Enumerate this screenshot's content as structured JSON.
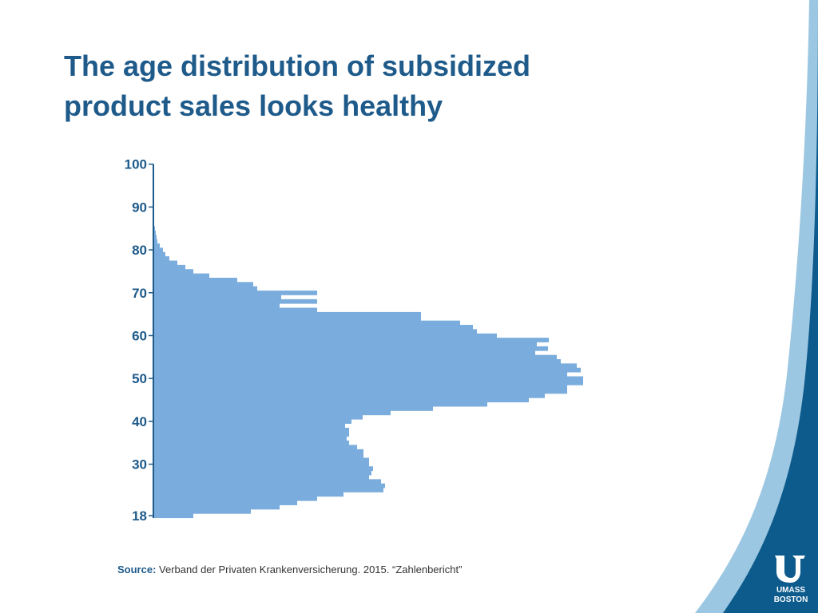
{
  "slide": {
    "title_line1": "The age distribution of subsidized",
    "title_line2": "product sales looks healthy",
    "source_label": "Source:",
    "source_text": "Verband der Privaten Krankenversicherung. 2015. “Zahlenbericht”",
    "logo_line1": "UMASS",
    "logo_line2": "BOSTON"
  },
  "colors": {
    "bar": "#7aaddd",
    "axis": "#1e5a8a",
    "title": "#1e5a8a",
    "decor_dark": "#0c5b8c",
    "decor_light": "#9cc7e2"
  },
  "chart_data": {
    "type": "bar",
    "orientation": "horizontal",
    "title": "",
    "xlabel": "",
    "ylabel": "",
    "ylim": [
      18,
      100
    ],
    "yticks": [
      "100",
      "90",
      "80",
      "70",
      "60",
      "50",
      "40",
      "30",
      "18"
    ],
    "ages": [
      18,
      19,
      20,
      21,
      22,
      23,
      24,
      25,
      26,
      27,
      28,
      29,
      30,
      31,
      32,
      33,
      34,
      35,
      36,
      37,
      38,
      39,
      40,
      41,
      42,
      43,
      44,
      45,
      46,
      47,
      48,
      49,
      50,
      51,
      52,
      53,
      54,
      55,
      56,
      57,
      58,
      59,
      60,
      61,
      62,
      63,
      64,
      65,
      66,
      67,
      68,
      69,
      70,
      71,
      72,
      73,
      74,
      75,
      76,
      77,
      78,
      79,
      80,
      81,
      82,
      83,
      84,
      85,
      86,
      87,
      88,
      89,
      90
    ],
    "values": [
      50,
      122,
      158,
      180,
      205,
      238,
      288,
      290,
      285,
      270,
      273,
      275,
      270,
      270,
      263,
      263,
      255,
      245,
      242,
      245,
      245,
      240,
      248,
      262,
      297,
      350,
      418,
      470,
      490,
      518,
      518,
      538,
      538,
      518,
      535,
      530,
      510,
      505,
      478,
      494,
      480,
      495,
      430,
      405,
      400,
      384,
      335,
      335,
      205,
      158,
      205,
      160,
      205,
      130,
      125,
      105,
      70,
      50,
      40,
      30,
      20,
      15,
      12,
      8,
      5,
      4,
      3,
      2,
      1,
      1,
      1,
      1,
      0
    ]
  }
}
